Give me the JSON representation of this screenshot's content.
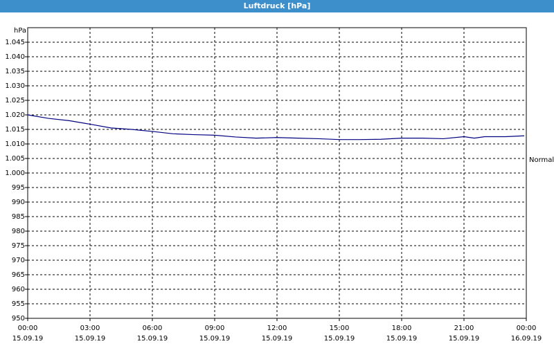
{
  "window_title": "Luftdruck [hPa]",
  "chart_data": {
    "type": "line",
    "y_unit": "hPa",
    "x": [
      0,
      1,
      2,
      3,
      4,
      5,
      6,
      7,
      8,
      9,
      10,
      11,
      12,
      13,
      14,
      15,
      16,
      17,
      18,
      19,
      20,
      21,
      21.5,
      22,
      23,
      23.9
    ],
    "series": [
      {
        "name": "Normal",
        "color": "#000080",
        "values": [
          1020,
          1018.8,
          1018,
          1016.8,
          1015.5,
          1015,
          1014.3,
          1013.5,
          1013.2,
          1013,
          1012.4,
          1012,
          1012.2,
          1012,
          1011.8,
          1011.5,
          1011.5,
          1011.6,
          1012,
          1012,
          1011.8,
          1012.5,
          1012,
          1012.5,
          1012.5,
          1012.8
        ]
      }
    ],
    "xlim": [
      0,
      24
    ],
    "xticks": [
      {
        "value": 0,
        "label": "00:00\n15.09.19"
      },
      {
        "value": 3,
        "label": "03:00\n15.09.19"
      },
      {
        "value": 6,
        "label": "06:00\n15.09.19"
      },
      {
        "value": 9,
        "label": "09:00\n15.09.19"
      },
      {
        "value": 12,
        "label": "12:00\n15.09.19"
      },
      {
        "value": 15,
        "label": "15:00\n15.09.19"
      },
      {
        "value": 18,
        "label": "18:00\n15.09.19"
      },
      {
        "value": 21,
        "label": "21:00\n15.09.19"
      },
      {
        "value": 24,
        "label": "00:00\n16.09.19"
      }
    ],
    "ylim": [
      950,
      1050
    ],
    "yticks": [
      950,
      955,
      960,
      965,
      970,
      975,
      980,
      985,
      990,
      995,
      {
        "value": 1000,
        "label": "1.000"
      },
      {
        "value": 1005,
        "label": "1.005"
      },
      {
        "value": 1010,
        "label": "1.010"
      },
      {
        "value": 1015,
        "label": "1.015"
      },
      {
        "value": 1020,
        "label": "1.020"
      },
      {
        "value": 1025,
        "label": "1.025"
      },
      {
        "value": 1030,
        "label": "1.030"
      },
      {
        "value": 1035,
        "label": "1.035"
      },
      {
        "value": 1040,
        "label": "1.040"
      },
      {
        "value": 1045,
        "label": "1.045"
      }
    ],
    "grid": true
  }
}
